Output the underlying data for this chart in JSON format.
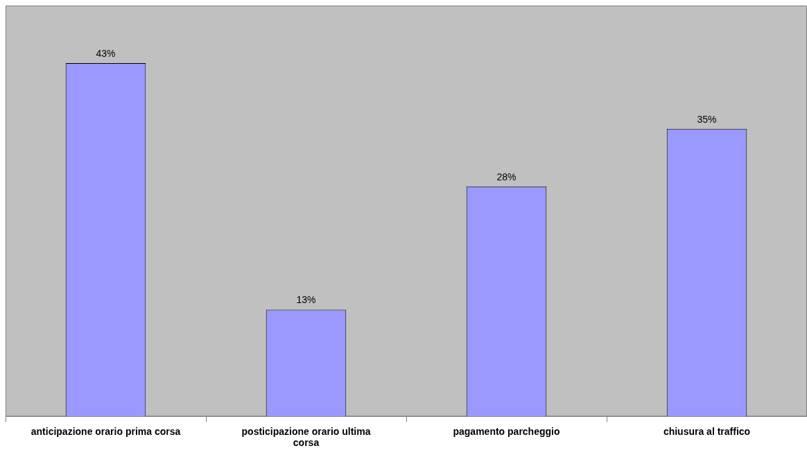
{
  "chart_data": {
    "type": "bar",
    "categories": [
      "anticipazione orario prima corsa",
      "posticipazione orario ultima corsa",
      "pagamento parcheggio",
      "chiusura al traffico"
    ],
    "values": [
      43,
      13,
      28,
      35
    ],
    "value_labels": [
      "43%",
      "13%",
      "28%",
      "35%"
    ],
    "color": "#9999ff",
    "ylim": [
      0,
      50
    ],
    "tick_labels": "x",
    "grid": false,
    "legend": false
  }
}
